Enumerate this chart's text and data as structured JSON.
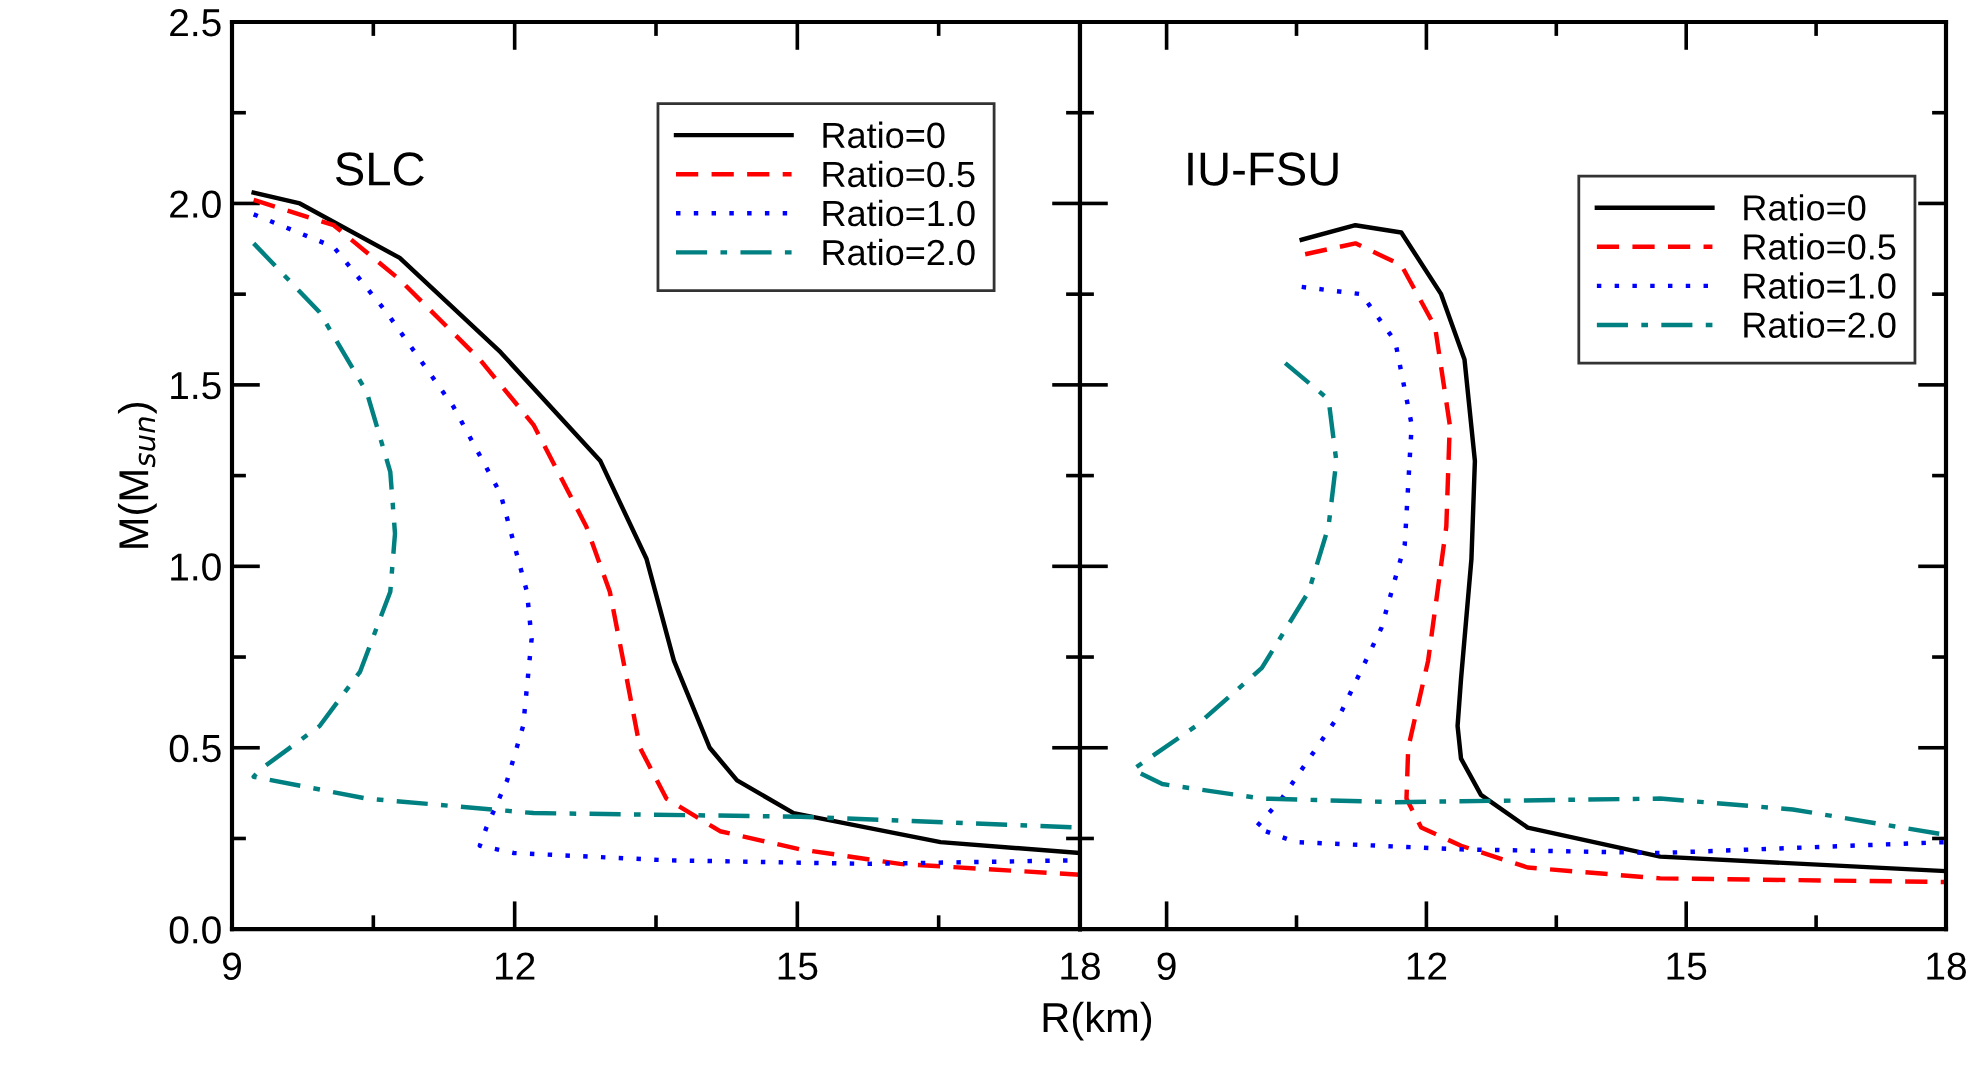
{
  "chart_data": [
    {
      "type": "line",
      "title": "SLC",
      "ylabel": "M(M$_{sun}$)",
      "xlabel": "R(km)",
      "xlim": [
        9,
        18
      ],
      "xticks": [
        9,
        12,
        15,
        18
      ],
      "ylim": [
        0,
        2.5
      ],
      "yticks": [
        {
          "value": 0,
          "label": "0.0"
        },
        {
          "value": 0.5,
          "label": "0.5"
        },
        {
          "value": 1.0,
          "label": "1.0"
        },
        {
          "value": 1.5,
          "label": "1.5"
        },
        {
          "value": 2.0,
          "label": "2.0"
        },
        {
          "value": 2.5,
          "label": "2.5"
        }
      ],
      "legend": "top right",
      "grid": false,
      "series": [
        {
          "name": "Ratio=0",
          "color": "#000000",
          "line_style": "solid",
          "x": [
            9.23,
            9.72,
            10.78,
            11.85,
            12.91,
            13.4,
            13.69,
            14.07,
            14.36,
            14.96,
            16.52,
            18
          ],
          "values": [
            2.03,
            2.0,
            1.85,
            1.59,
            1.29,
            1.02,
            0.74,
            0.5,
            0.41,
            0.32,
            0.24,
            0.21
          ]
        },
        {
          "name": "Ratio=0.5",
          "color": "#ff0000",
          "line_style": "dashed",
          "x": [
            9.23,
            10.08,
            10.78,
            11.63,
            12.2,
            12.76,
            13.01,
            13.19,
            13.33,
            13.61,
            14.18,
            15.03,
            16.09,
            18
          ],
          "values": [
            2.01,
            1.94,
            1.79,
            1.57,
            1.39,
            1.11,
            0.93,
            0.69,
            0.5,
            0.36,
            0.27,
            0.22,
            0.18,
            0.15
          ]
        },
        {
          "name": "Ratio=1.0",
          "color": "#0000ff",
          "line_style": "dotted",
          "x": [
            9.23,
            10.08,
            10.64,
            11.35,
            11.85,
            12.13,
            12.18,
            12.09,
            11.92,
            11.7,
            11.63,
            11.99,
            13.61,
            15.74,
            18
          ],
          "values": [
            1.97,
            1.88,
            1.7,
            1.44,
            1.2,
            0.93,
            0.8,
            0.56,
            0.41,
            0.28,
            0.23,
            0.21,
            0.19,
            0.18,
            0.19
          ]
        },
        {
          "name": "Ratio=2.0",
          "color": "#008080",
          "line_style": "dashdot",
          "x": [
            9.23,
            9.93,
            10.43,
            10.68,
            10.73,
            10.68,
            10.36,
            9.93,
            9.3,
            9.23,
            10.43,
            12.2,
            15.03,
            18
          ],
          "values": [
            1.89,
            1.7,
            1.48,
            1.26,
            1.09,
            0.93,
            0.71,
            0.56,
            0.44,
            0.42,
            0.36,
            0.32,
            0.31,
            0.28
          ]
        }
      ]
    },
    {
      "type": "line",
      "title": "IU-FSU",
      "xlim": [
        8,
        18
      ],
      "xticks": [
        9,
        12,
        15,
        18
      ],
      "ylim": [
        0,
        2.5
      ],
      "yticks": [
        0.0,
        0.5,
        1.0,
        1.5,
        2.0,
        2.5
      ],
      "tick_labels": "x",
      "legend": "top right",
      "grid": false,
      "series": [
        {
          "name": "Ratio=0",
          "color": "#000000",
          "line_style": "solid",
          "x": [
            10.56,
            11.18,
            11.71,
            12.17,
            12.44,
            12.56,
            12.52,
            12.4,
            12.36,
            12.4,
            12.63,
            13.17,
            14.7,
            18
          ],
          "values": [
            1.9,
            1.94,
            1.92,
            1.75,
            1.57,
            1.29,
            1.02,
            0.69,
            0.56,
            0.47,
            0.37,
            0.28,
            0.2,
            0.16
          ]
        },
        {
          "name": "Ratio=0.5",
          "color": "#ff0000",
          "line_style": "dashed",
          "x": [
            10.6,
            11.18,
            11.71,
            12.1,
            12.27,
            12.23,
            12.02,
            11.79,
            11.77,
            11.94,
            12.4,
            13.17,
            14.7,
            18
          ],
          "values": [
            1.86,
            1.89,
            1.83,
            1.66,
            1.39,
            1.11,
            0.74,
            0.5,
            0.36,
            0.28,
            0.23,
            0.17,
            0.14,
            0.13
          ]
        },
        {
          "name": "Ratio=1.0",
          "color": "#0000ff",
          "line_style": "dotted",
          "x": [
            10.56,
            11.25,
            11.64,
            11.83,
            11.75,
            11.48,
            11.02,
            10.33,
            10.03,
            10.49,
            12.4,
            14.7,
            18
          ],
          "values": [
            1.77,
            1.75,
            1.62,
            1.39,
            1.06,
            0.83,
            0.6,
            0.36,
            0.28,
            0.24,
            0.22,
            0.21,
            0.24
          ]
        },
        {
          "name": "Ratio=2.0",
          "color": "#008080",
          "line_style": "dashdot",
          "x": [
            10.37,
            10.87,
            10.96,
            10.87,
            10.64,
            10.1,
            9.34,
            8.61,
            8.95,
            10.1,
            11.64,
            14.7,
            16.23,
            18
          ],
          "values": [
            1.56,
            1.46,
            1.29,
            1.11,
            0.93,
            0.72,
            0.56,
            0.44,
            0.4,
            0.36,
            0.35,
            0.36,
            0.33,
            0.26
          ]
        }
      ]
    }
  ]
}
